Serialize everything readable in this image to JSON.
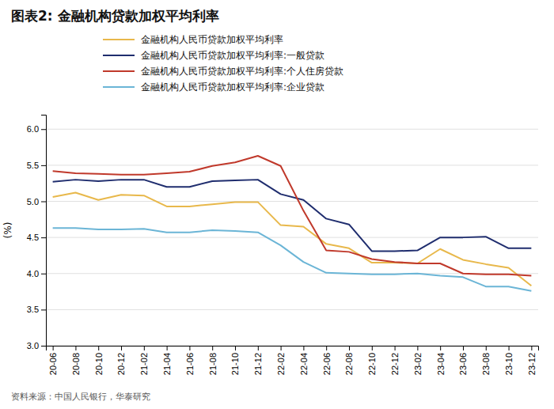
{
  "chart_data": {
    "type": "line",
    "title": "图表2:  金融机构贷款加权平均利率",
    "ylabel": "(%)",
    "annotations": [
      "资料来源：中国人民银行，华泰研究"
    ],
    "categories": [
      "20-06",
      "20-08",
      "20-10",
      "20-12",
      "21-02",
      "21-04",
      "21-06",
      "21-08",
      "21-10",
      "21-12",
      "22-02",
      "22-04",
      "22-06",
      "22-08",
      "22-10",
      "22-12",
      "23-02",
      "23-04",
      "23-06",
      "23-08",
      "23-10",
      "23-12"
    ],
    "series": [
      {
        "name": "金融机构人民币贷款加权平均利率",
        "color": "#E8B84B",
        "values": [
          5.06,
          5.12,
          5.02,
          5.09,
          5.08,
          4.93,
          4.93,
          4.96,
          4.99,
          4.99,
          4.67,
          4.65,
          4.41,
          4.35,
          4.15,
          4.15,
          4.14,
          4.34,
          4.19,
          4.13,
          4.08,
          3.83
        ]
      },
      {
        "name": "金融机构人民币贷款加权平均利率:一般贷款",
        "color": "#1F2D6E",
        "values": [
          5.27,
          5.3,
          5.28,
          5.3,
          5.3,
          5.2,
          5.2,
          5.28,
          5.29,
          5.3,
          5.1,
          5.02,
          4.76,
          4.68,
          4.31,
          4.31,
          4.32,
          4.5,
          4.5,
          4.51,
          4.35,
          4.35
        ]
      },
      {
        "name": "金融机构人民币贷款加权平均利率:个人住房贷款",
        "color": "#C0392B",
        "values": [
          5.42,
          5.39,
          5.38,
          5.37,
          5.37,
          5.39,
          5.41,
          5.49,
          5.54,
          5.63,
          5.49,
          4.87,
          4.32,
          4.3,
          4.2,
          4.16,
          4.14,
          4.14,
          4.0,
          3.99,
          3.99,
          3.97
        ]
      },
      {
        "name": "金融机构人民币贷款加权平均利率:企业贷款",
        "color": "#6BB5D6",
        "values": [
          4.63,
          4.63,
          4.61,
          4.61,
          4.62,
          4.57,
          4.57,
          4.6,
          4.59,
          4.57,
          4.39,
          4.16,
          4.01,
          4.0,
          3.99,
          3.99,
          4.0,
          3.97,
          3.95,
          3.82,
          3.82,
          3.76
        ]
      }
    ],
    "ylim": [
      3.0,
      6.2
    ],
    "yticks": [
      {
        "value": 3.0,
        "label": "3.0"
      },
      3.5,
      {
        "value": 4.0,
        "label": "4.0"
      },
      4.5,
      {
        "value": 5.0,
        "label": "5.0"
      },
      5.5,
      {
        "value": 6.0,
        "label": "6.0"
      }
    ],
    "grid": true,
    "legend": "top"
  }
}
